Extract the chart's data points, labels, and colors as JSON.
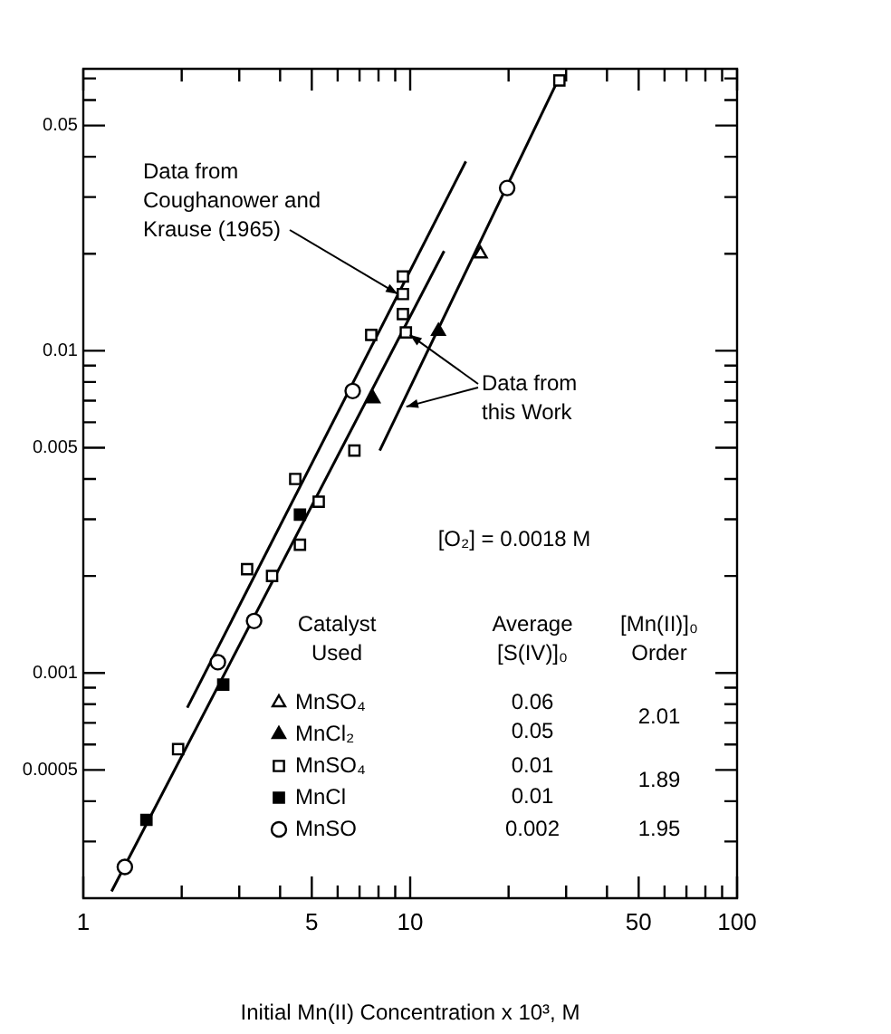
{
  "chart_data": {
    "type": "scatter",
    "xlabel": "Initial Mn(II) Concentration x 10³, M",
    "xlim": [
      1,
      100
    ],
    "ylim": [
      0.0002,
      0.075
    ],
    "log": "xy",
    "grid": false,
    "legend": "bottom left",
    "xticks": [
      1,
      {
        "value": 2,
        "label": null
      },
      {
        "value": 3,
        "label": null
      },
      {
        "value": 4,
        "label": null
      },
      5,
      {
        "value": 6,
        "label": null
      },
      {
        "value": 7,
        "label": null
      },
      {
        "value": 8,
        "label": null
      },
      {
        "value": 9,
        "label": null
      },
      10,
      {
        "value": 20,
        "label": null
      },
      {
        "value": 30,
        "label": null
      },
      {
        "value": 40,
        "label": null
      },
      50,
      {
        "value": 60,
        "label": null
      },
      {
        "value": 70,
        "label": null
      },
      {
        "value": 80,
        "label": null
      },
      {
        "value": 90,
        "label": null
      },
      100
    ],
    "yticks": [
      {
        "value": 0.0003,
        "label": null
      },
      {
        "value": 0.0004,
        "label": null
      },
      0.0005,
      {
        "value": 0.0006,
        "label": null
      },
      {
        "value": 0.0007,
        "label": null
      },
      {
        "value": 0.0008,
        "label": null
      },
      {
        "value": 0.0009,
        "label": null
      },
      0.001,
      {
        "value": 0.002,
        "label": null
      },
      {
        "value": 0.003,
        "label": null
      },
      {
        "value": 0.004,
        "label": null
      },
      0.005,
      {
        "value": 0.006,
        "label": null
      },
      {
        "value": 0.007,
        "label": null
      },
      {
        "value": 0.008,
        "label": null
      },
      {
        "value": 0.009,
        "label": null
      },
      0.01,
      {
        "value": 0.02,
        "label": null
      },
      {
        "value": 0.03,
        "label": null
      },
      {
        "value": 0.04,
        "label": null
      },
      0.05,
      {
        "value": 0.06,
        "label": null
      },
      {
        "value": 0.07,
        "label": null
      }
    ],
    "series": [
      {
        "name": "MnSO₄",
        "marker": "triangle",
        "color": "#ffffff",
        "x": [
          16.4
        ],
        "values": [
          0.02
        ]
      },
      {
        "name": "MnCl₂",
        "marker": "triangle",
        "color": "#000000",
        "x": [
          12.2,
          7.7
        ],
        "values": [
          0.0115,
          0.0071
        ]
      },
      {
        "name": "MnSO₄",
        "marker": "square",
        "color": "#ffffff",
        "x": [
          28.6,
          9.7,
          7.6,
          6.75,
          5.25,
          4.6,
          3.78,
          1.95
        ],
        "values": [
          0.069,
          0.0114,
          0.0112,
          0.0049,
          0.0034,
          0.0025,
          0.002,
          0.00058
        ]
      },
      {
        "name": "MnCl",
        "marker": "square",
        "color": "#000000",
        "x": [
          4.6,
          2.68,
          1.56
        ],
        "values": [
          0.0031,
          0.00092,
          0.00035
        ]
      },
      {
        "name": "MnSO",
        "marker": "circle",
        "color": "#ffffff",
        "x": [
          19.8,
          6.67,
          3.33,
          2.58,
          1.34
        ],
        "values": [
          0.032,
          0.0075,
          0.00145,
          0.00108,
          0.00025
        ]
      },
      {
        "marker": "square",
        "color": "#ffffff",
        "x": [
          9.5,
          9.5,
          9.5,
          7.9,
          4.45,
          3.17
        ],
        "values": [
          0.017,
          0.015,
          0.013,
          null,
          0.004,
          0.0021
        ]
      },
      {
        "type": "line",
        "marker": "none",
        "line_style": "solid",
        "color": "#000000",
        "x": [
          2.08,
          14.8
        ],
        "values": [
          0.00078,
          0.0387
        ]
      },
      {
        "type": "line",
        "marker": "none",
        "line_style": "solid",
        "color": "#000000",
        "x": [
          1.22,
          12.7
        ],
        "values": [
          0.00021,
          0.0204
        ]
      },
      {
        "type": "line",
        "marker": "none",
        "line_style": "solid",
        "color": "#000000",
        "x": [
          8.07,
          27.9
        ],
        "values": [
          0.0049,
          0.067
        ]
      }
    ],
    "annotations": [
      {
        "text": "Data from Coughanower and Krause (1965)",
        "x": 9.4,
        "y": 0.0158
      },
      {
        "text": "Data from this Work",
        "x": 9.6,
        "y": 0.0118
      },
      "[O₂] = 0.0018 M",
      "Catalyst Used",
      "Average [S(IV)]₀",
      "[Mn(II)]₀ Order",
      "0.06",
      "0.05",
      "0.01",
      "0.01",
      "0.002",
      "2.01",
      "1.89",
      "1.95"
    ]
  }
}
